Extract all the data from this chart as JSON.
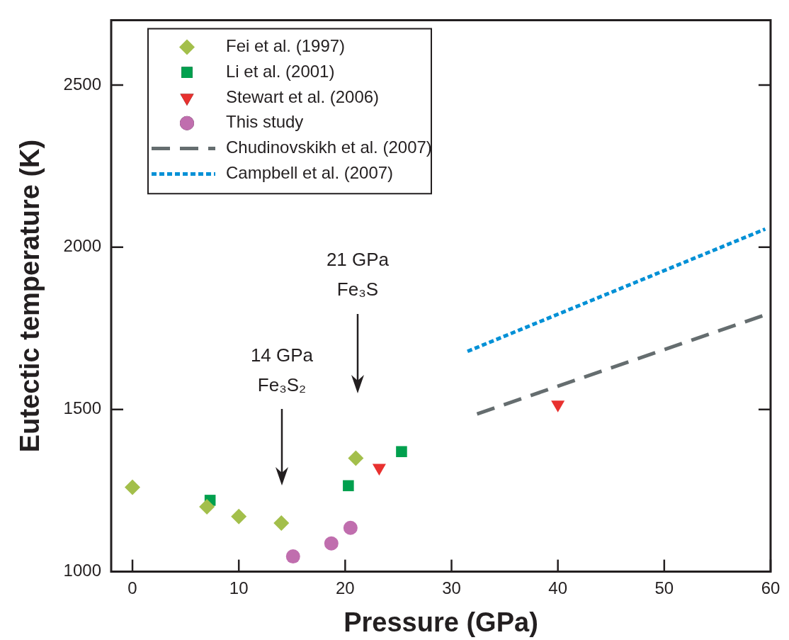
{
  "chart_data": {
    "type": "scatter",
    "xlabel": "Pressure (GPa)",
    "ylabel": "Eutectic temperature (K)",
    "xlim": [
      -2,
      60
    ],
    "xticks": [
      0,
      10,
      20,
      30,
      40,
      50,
      60
    ],
    "ylim": [
      1000,
      2700
    ],
    "yticks": [
      1000,
      1500,
      2000,
      2500
    ],
    "grid": false,
    "legend": "top left",
    "series": [
      {
        "name": "Fei et al. (1997)",
        "color": "#a3bf4b",
        "marker": "diamond",
        "x": [
          0,
          7,
          10,
          14,
          21
        ],
        "values": [
          1260,
          1200,
          1170,
          1150,
          1350
        ]
      },
      {
        "name": "Li et al. (2001)",
        "color": "#00a04e",
        "marker": "square",
        "x": [
          7.3,
          20.3,
          25.3
        ],
        "values": [
          1220,
          1265,
          1370
        ]
      },
      {
        "name": "Stewart et al. (2006)",
        "color": "#e8312f",
        "marker": "triangle",
        "x": [
          23.2,
          40
        ],
        "values": [
          1320,
          1515
        ]
      },
      {
        "name": "This study",
        "color": "#c06eae",
        "marker": "circle",
        "x": [
          15.1,
          18.7,
          20.5
        ],
        "values": [
          1047,
          1087,
          1135
        ]
      },
      {
        "name": "Chudinovskikh et al. (2007)",
        "type": "line",
        "color": "#656d6f",
        "marker": "none",
        "line_style": "dashed",
        "x": [
          32.4,
          59.7
        ],
        "values": [
          1486,
          1794
        ]
      },
      {
        "name": "Campbell et al. (2007)",
        "type": "line",
        "color": "#0090d6",
        "marker": "none",
        "line_style": "dotted",
        "x": [
          31.5,
          59.5
        ],
        "values": [
          1679,
          2056
        ]
      }
    ],
    "annotations": [
      "14 GPa\nFe₃S₂",
      "21 GPa\nFe₃S"
    ]
  }
}
